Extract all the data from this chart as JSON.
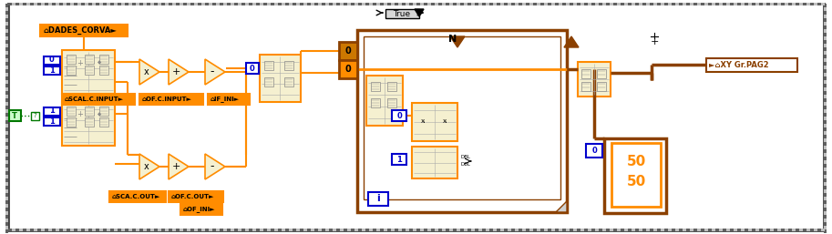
{
  "bg_color": "#ffffff",
  "orange": "#FF8C00",
  "dark_orange": "#8B4000",
  "brown": "#804000",
  "blue": "#0000CC",
  "green": "#007700",
  "yellow_bg": "#FFFDE0",
  "beige": "#F5F0D0",
  "white": "#FFFFFF",
  "black": "#000000",
  "gray_border": "#606060",
  "label_DADES_CORVA": "DADES_CORVA",
  "label_SCAL_C_INPUT": "SCAL.C.INPUT",
  "label_OF_C_INPUT": "OF.C.INPUT",
  "label_IF_INI": "IF_INI",
  "label_SCA_C_OUT": "SCA.C.OUT",
  "label_OF_C_OUT": "OF.C.OUT",
  "label_OF_INI": "OF_INI",
  "label_XY_Gr_PAG2": "XY Gr.PAG2",
  "label_True": "True",
  "figsize": [
    9.13,
    2.57
  ],
  "dpi": 100
}
